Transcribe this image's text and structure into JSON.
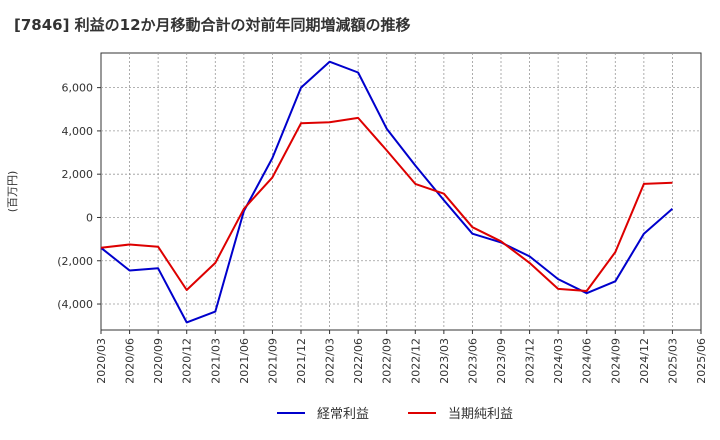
{
  "title": "[7846]  利益の12か月移動合計の対前年同期増減額の推移",
  "chart_data": {
    "type": "line",
    "title": "[7846]  利益の12か月移動合計の対前年同期増減額の推移",
    "ylabel": "(百万円)",
    "xlabel": "",
    "ylim": [
      -5200,
      7600
    ],
    "yticks": [
      6000,
      4000,
      2000,
      0,
      -2000,
      -4000
    ],
    "ytick_labels": [
      "6,000",
      "4,000",
      "2,000",
      "0",
      "(2,000",
      "(4,000"
    ],
    "x": [
      "2020/03",
      "2020/06",
      "2020/09",
      "2020/12",
      "2021/03",
      "2021/06",
      "2021/09",
      "2021/12",
      "2022/03",
      "2022/06",
      "2022/09",
      "2022/12",
      "2023/03",
      "2023/06",
      "2023/09",
      "2023/12",
      "2024/03",
      "2024/06",
      "2024/09",
      "2024/12",
      "2025/03",
      "2025/06"
    ],
    "grid": true,
    "legend_position": "bottom",
    "series": [
      {
        "name": "経常利益",
        "color": "#0000cc",
        "values": [
          -1400,
          -2450,
          -2350,
          -4850,
          -4350,
          300,
          2750,
          6000,
          7200,
          6700,
          4100,
          2400,
          800,
          -750,
          -1150,
          -1800,
          -2850,
          -3500,
          -2950,
          -750,
          400,
          null
        ]
      },
      {
        "name": "当期純利益",
        "color": "#dd0000",
        "values": [
          -1400,
          -1250,
          -1350,
          -3350,
          -2100,
          400,
          1850,
          4350,
          4400,
          4600,
          3100,
          1550,
          1100,
          -450,
          -1100,
          -2100,
          -3300,
          -3400,
          -1600,
          1550,
          1600,
          null
        ]
      }
    ]
  }
}
